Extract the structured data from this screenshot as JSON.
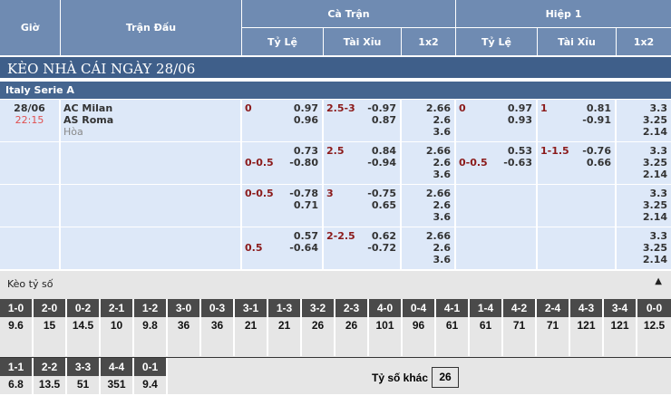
{
  "header": {
    "time": "Giờ",
    "match": "Trận Đấu",
    "full": "Cà Trận",
    "half": "Hiệp 1",
    "hdp": "Tỷ Lệ",
    "ou": "Tài Xỉu",
    "x12": "1x2"
  },
  "title": "KÈO NHÀ CÁI NGÀY 28/06",
  "league": "Italy Serie A",
  "match": {
    "date": "28/06",
    "time": "22:15",
    "home": "AC Milan",
    "away": "AS Roma",
    "draw": "Hòa"
  },
  "colors": {
    "header": "#6f8bb2",
    "title": "#3f5f8a",
    "row": "#dde8f8",
    "label": "#8b1a1a",
    "time": "#e05050"
  },
  "rows": [
    {
      "ft_hdp": {
        "label": "0",
        "line": 1,
        "a": "0.97",
        "b": "0.96"
      },
      "ft_ou": {
        "label": "2.5-3",
        "line": 1,
        "a": "-0.97",
        "b": "0.87"
      },
      "ft_1x2": [
        "2.66",
        "2.6",
        "3.6"
      ],
      "h1_hdp": {
        "label": "0",
        "line": 1,
        "a": "0.97",
        "b": "0.93"
      },
      "h1_ou": {
        "label": "1",
        "line": 1,
        "a": "0.81",
        "b": "-0.91"
      },
      "h1_1x2": [
        "3.3",
        "3.25",
        "2.14"
      ]
    },
    {
      "ft_hdp": {
        "label": "0-0.5",
        "line": 2,
        "a": "0.73",
        "b": "-0.80"
      },
      "ft_ou": {
        "label": "2.5",
        "line": 1,
        "a": "0.84",
        "b": "-0.94"
      },
      "ft_1x2": [
        "2.66",
        "2.6",
        "3.6"
      ],
      "h1_hdp": {
        "label": "0-0.5",
        "line": 2,
        "a": "0.53",
        "b": "-0.63"
      },
      "h1_ou": {
        "label": "1-1.5",
        "line": 1,
        "a": "-0.76",
        "b": "0.66"
      },
      "h1_1x2": [
        "3.3",
        "3.25",
        "2.14"
      ]
    },
    {
      "ft_hdp": {
        "label": "0-0.5",
        "line": 1,
        "a": "-0.78",
        "b": "0.71"
      },
      "ft_ou": {
        "label": "3",
        "line": 1,
        "a": "-0.75",
        "b": "0.65"
      },
      "ft_1x2": [
        "2.66",
        "2.6",
        "3.6"
      ],
      "h1_hdp": null,
      "h1_ou": null,
      "h1_1x2": [
        "3.3",
        "3.25",
        "2.14"
      ]
    },
    {
      "ft_hdp": {
        "label": "0.5",
        "line": 2,
        "a": "0.57",
        "b": "-0.64"
      },
      "ft_ou": {
        "label": "2-2.5",
        "line": 1,
        "a": "0.62",
        "b": "-0.72"
      },
      "ft_1x2": [
        "2.66",
        "2.6",
        "3.6"
      ],
      "h1_hdp": null,
      "h1_ou": null,
      "h1_1x2": [
        "3.3",
        "3.25",
        "2.14"
      ]
    }
  ],
  "scores": {
    "title": "Kèo tỷ số",
    "row1": [
      [
        "1-0",
        "9.6"
      ],
      [
        "2-0",
        "15"
      ],
      [
        "0-2",
        "14.5"
      ],
      [
        "2-1",
        "10"
      ],
      [
        "1-2",
        "9.8"
      ],
      [
        "3-0",
        "36"
      ],
      [
        "0-3",
        "36"
      ],
      [
        "3-1",
        "21"
      ],
      [
        "1-3",
        "21"
      ],
      [
        "3-2",
        "26"
      ],
      [
        "2-3",
        "26"
      ],
      [
        "4-0",
        "101"
      ],
      [
        "0-4",
        "96"
      ],
      [
        "4-1",
        "61"
      ],
      [
        "1-4",
        "61"
      ],
      [
        "4-2",
        "71"
      ],
      [
        "2-4",
        "71"
      ],
      [
        "4-3",
        "121"
      ],
      [
        "3-4",
        "121"
      ],
      [
        "0-0",
        "12.5"
      ]
    ],
    "row2": [
      [
        "1-1",
        "6.8"
      ],
      [
        "2-2",
        "13.5"
      ],
      [
        "3-3",
        "51"
      ],
      [
        "4-4",
        "351"
      ],
      [
        "0-1",
        "9.4"
      ]
    ],
    "other_label": "Tỷ số khác",
    "other_value": "26"
  }
}
